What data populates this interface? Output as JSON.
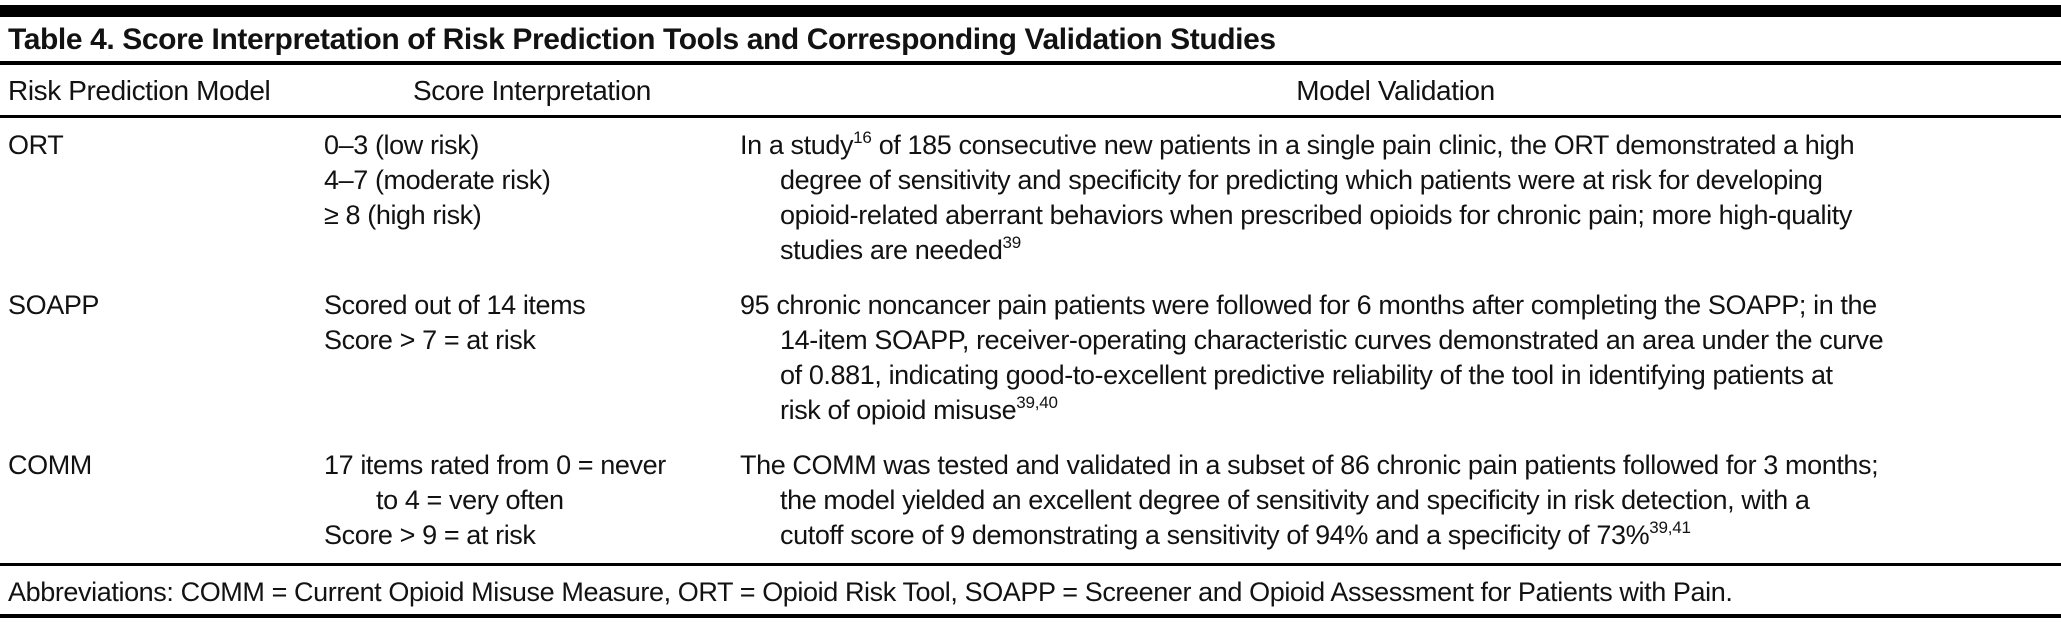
{
  "colors": {
    "background": "#ffffff",
    "text": "#121212",
    "rule": "#000000"
  },
  "table": {
    "title": "Table 4. Score Interpretation of Risk Prediction Tools and Corresponding Validation Studies",
    "columns": {
      "model": "Risk Prediction Model",
      "score": "Score Interpretation",
      "validation": "Model Validation"
    },
    "rows": [
      {
        "model": "ORT",
        "score_lines": [
          {
            "text": "0–3 (low risk)",
            "indent": false
          },
          {
            "text": "4–7 (moderate risk)",
            "indent": false
          },
          {
            "text": "≥ 8 (high risk)",
            "indent": false
          }
        ],
        "validation_lines": [
          {
            "indent": false,
            "segments": [
              {
                "text": "In a study"
              },
              {
                "sup": "16"
              },
              {
                "text": " of 185 consecutive new patients in a single pain clinic, the ORT demonstrated a high"
              }
            ]
          },
          {
            "indent": true,
            "segments": [
              {
                "text": "degree of sensitivity and specificity for predicting which patients were at risk for developing"
              }
            ]
          },
          {
            "indent": true,
            "segments": [
              {
                "text": "opioid-related aberrant behaviors when prescribed opioids for chronic pain; more high-quality"
              }
            ]
          },
          {
            "indent": true,
            "segments": [
              {
                "text": "studies are needed"
              },
              {
                "sup": "39"
              }
            ]
          }
        ]
      },
      {
        "model": "SOAPP",
        "score_lines": [
          {
            "text": "Scored out of 14 items",
            "indent": false
          },
          {
            "text": "Score > 7 = at risk",
            "indent": false
          }
        ],
        "validation_lines": [
          {
            "indent": false,
            "segments": [
              {
                "text": "95 chronic noncancer pain patients were followed for 6 months after completing the SOAPP; in the"
              }
            ]
          },
          {
            "indent": true,
            "segments": [
              {
                "text": "14-item SOAPP, receiver-operating characteristic curves demonstrated an area under the curve"
              }
            ]
          },
          {
            "indent": true,
            "segments": [
              {
                "text": "of 0.881, indicating good-to-excellent predictive reliability of the tool in identifying patients at"
              }
            ]
          },
          {
            "indent": true,
            "segments": [
              {
                "text": "risk of opioid misuse"
              },
              {
                "sup": "39,40"
              }
            ]
          }
        ]
      },
      {
        "model": "COMM",
        "score_lines": [
          {
            "text": "17 items rated from 0 = never",
            "indent": false
          },
          {
            "text": "to 4 = very often",
            "indent": true
          },
          {
            "text": "Score > 9 = at risk",
            "indent": false
          }
        ],
        "validation_lines": [
          {
            "indent": false,
            "segments": [
              {
                "text": "The COMM was tested and validated in a subset of 86 chronic pain patients followed for 3 months;"
              }
            ]
          },
          {
            "indent": true,
            "segments": [
              {
                "text": "the model yielded an excellent degree of sensitivity and specificity in risk detection, with a"
              }
            ]
          },
          {
            "indent": true,
            "segments": [
              {
                "text": "cutoff score of 9 demonstrating a sensitivity of 94% and a specificity of 73%"
              },
              {
                "sup": "39,41"
              }
            ]
          }
        ]
      }
    ],
    "footnote": "Abbreviations: COMM = Current Opioid Misuse Measure, ORT = Opioid Risk Tool, SOAPP = Screener and Opioid Assessment for Patients with Pain."
  }
}
